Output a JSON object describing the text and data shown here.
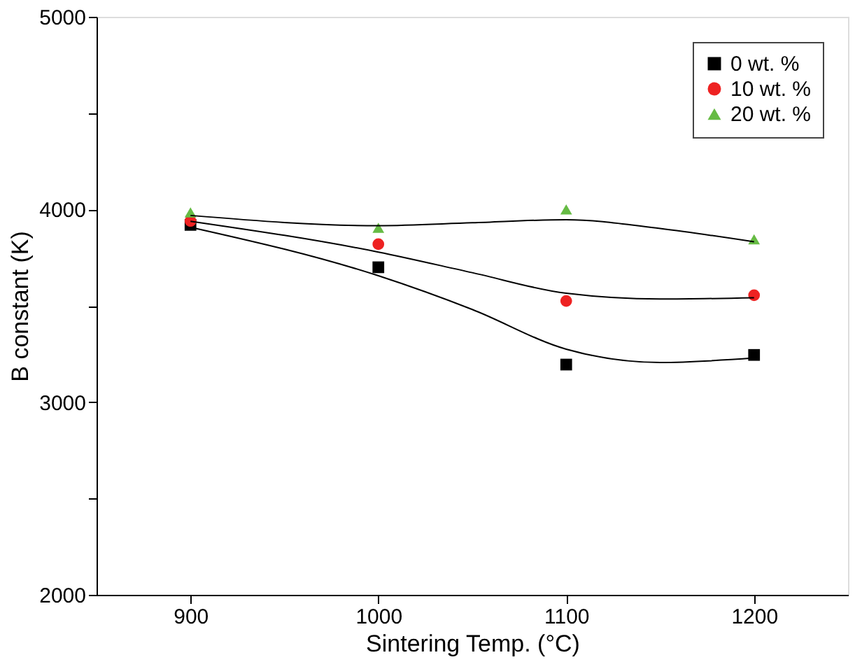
{
  "chart_data": {
    "type": "scatter",
    "xlabel": "Sintering Temp. (°C)",
    "ylabel": "B constant (K)",
    "x": [
      900,
      1000,
      1100,
      1200
    ],
    "series": [
      {
        "name": "0 wt. %",
        "color": "#000000",
        "marker": "square",
        "values": [
          3920,
          3700,
          3195,
          3245
        ]
      },
      {
        "name": "10 wt. %",
        "color": "#ee2222",
        "marker": "circle",
        "values": [
          3940,
          3820,
          3525,
          3555
        ]
      },
      {
        "name": "20 wt. %",
        "color": "#66bb44",
        "marker": "triangle",
        "values": [
          3985,
          3905,
          4000,
          3845
        ]
      },
      {
        "type": "line",
        "color": "#000000",
        "marker": "none",
        "x": [
          900,
          1000,
          1050,
          1100,
          1150,
          1200
        ],
        "values": [
          3908,
          3656,
          3481,
          3275,
          3206,
          3229
        ]
      },
      {
        "type": "line",
        "color": "#000000",
        "marker": "none",
        "x": [
          900,
          1000,
          1050,
          1100,
          1150,
          1200
        ],
        "values": [
          3939,
          3779,
          3672,
          3565,
          3535,
          3542
        ]
      },
      {
        "type": "line",
        "color": "#000000",
        "marker": "none",
        "x": [
          900,
          1000,
          1050,
          1100,
          1150,
          1200
        ],
        "values": [
          3969,
          3916,
          3931,
          3947,
          3901,
          3832
        ]
      }
    ],
    "xlim": [
      850,
      1250
    ],
    "xticks": [
      900,
      1000,
      1100,
      1200
    ],
    "ylim": [
      2000,
      5000
    ],
    "yticks": [
      2000,
      {
        "value": 2500,
        "label": null
      },
      3000,
      {
        "value": 3500,
        "label": null
      },
      4000,
      {
        "value": 4500,
        "label": null
      },
      5000
    ],
    "grid": false,
    "legend": "top right"
  }
}
